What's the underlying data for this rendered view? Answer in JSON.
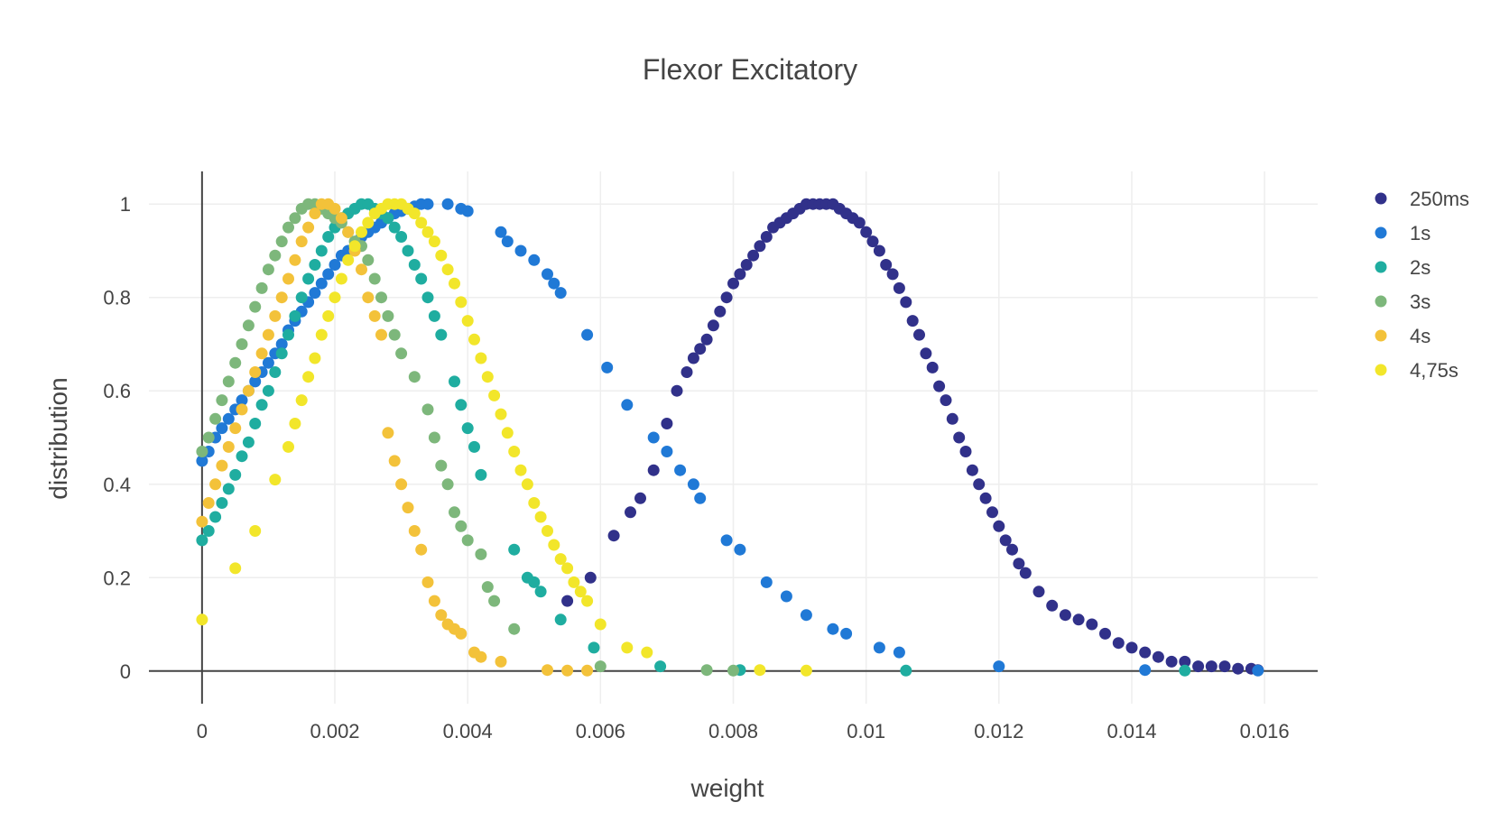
{
  "chart_data": {
    "type": "scatter",
    "title": "Flexor Excitatory",
    "xlabel": "weight",
    "ylabel": "distribution",
    "xlim": [
      -0.0008,
      0.0168
    ],
    "ylim": [
      -0.07,
      1.07
    ],
    "x_ticks": [
      0,
      0.002,
      0.004,
      0.006,
      0.008,
      0.01,
      0.012,
      0.014,
      0.016
    ],
    "x_tick_labels": [
      "0",
      "0.002",
      "0.004",
      "0.006",
      "0.008",
      "0.01",
      "0.012",
      "0.014",
      "0.016"
    ],
    "y_ticks": [
      0,
      0.2,
      0.4,
      0.6,
      0.8,
      1
    ],
    "y_tick_labels": [
      "0",
      "0.2",
      "0.4",
      "0.6",
      "0.8",
      "1"
    ],
    "grid": true,
    "legend_position": "top-right",
    "series": [
      {
        "name": "250ms",
        "color": "#31318a",
        "x": [
          0.0055,
          0.00585,
          0.0062,
          0.00645,
          0.0066,
          0.0068,
          0.007,
          0.00715,
          0.0073,
          0.0074,
          0.0075,
          0.0076,
          0.0077,
          0.0078,
          0.0079,
          0.008,
          0.0081,
          0.0082,
          0.0083,
          0.0084,
          0.0085,
          0.0086,
          0.0087,
          0.0088,
          0.0089,
          0.009,
          0.0091,
          0.0092,
          0.0093,
          0.0094,
          0.0095,
          0.0096,
          0.0097,
          0.0098,
          0.0099,
          0.01,
          0.0101,
          0.0102,
          0.0103,
          0.0104,
          0.0105,
          0.0106,
          0.0107,
          0.0108,
          0.0109,
          0.011,
          0.0111,
          0.0112,
          0.0113,
          0.0114,
          0.0115,
          0.0116,
          0.0117,
          0.0118,
          0.0119,
          0.012,
          0.0121,
          0.0122,
          0.0123,
          0.0124,
          0.0126,
          0.0128,
          0.013,
          0.0132,
          0.0134,
          0.0136,
          0.0138,
          0.014,
          0.0142,
          0.0144,
          0.0146,
          0.0148,
          0.015,
          0.0152,
          0.0154,
          0.0156,
          0.0158,
          0.0159
        ],
        "y": [
          0.15,
          0.2,
          0.29,
          0.34,
          0.37,
          0.43,
          0.53,
          0.6,
          0.64,
          0.67,
          0.69,
          0.71,
          0.74,
          0.77,
          0.8,
          0.83,
          0.85,
          0.87,
          0.89,
          0.91,
          0.93,
          0.95,
          0.96,
          0.97,
          0.98,
          0.99,
          1.0,
          1.0,
          1.0,
          1.0,
          1.0,
          0.99,
          0.98,
          0.97,
          0.96,
          0.94,
          0.92,
          0.9,
          0.87,
          0.85,
          0.82,
          0.79,
          0.75,
          0.72,
          0.68,
          0.65,
          0.61,
          0.58,
          0.54,
          0.5,
          0.47,
          0.43,
          0.4,
          0.37,
          0.34,
          0.31,
          0.28,
          0.26,
          0.23,
          0.21,
          0.17,
          0.14,
          0.12,
          0.11,
          0.1,
          0.08,
          0.06,
          0.05,
          0.04,
          0.03,
          0.02,
          0.02,
          0.01,
          0.01,
          0.01,
          0.005,
          0.005,
          0.002
        ]
      },
      {
        "name": "1s",
        "color": "#2079d6",
        "x": [
          0.0,
          0.0001,
          0.0002,
          0.0003,
          0.0004,
          0.0005,
          0.0006,
          0.0007,
          0.0008,
          0.0009,
          0.001,
          0.0011,
          0.0012,
          0.0013,
          0.0014,
          0.0015,
          0.0016,
          0.0017,
          0.0018,
          0.0019,
          0.002,
          0.0021,
          0.0022,
          0.0023,
          0.0024,
          0.0025,
          0.0026,
          0.0027,
          0.0028,
          0.0029,
          0.003,
          0.0031,
          0.0032,
          0.0033,
          0.0034,
          0.0037,
          0.0039,
          0.004,
          0.0045,
          0.0046,
          0.0048,
          0.005,
          0.0052,
          0.0053,
          0.0054,
          0.0058,
          0.0061,
          0.0064,
          0.0068,
          0.007,
          0.0072,
          0.0074,
          0.0075,
          0.0079,
          0.0081,
          0.0085,
          0.0088,
          0.0091,
          0.0095,
          0.0097,
          0.0102,
          0.0105,
          0.012,
          0.0142,
          0.0159
        ],
        "y": [
          0.45,
          0.47,
          0.5,
          0.52,
          0.54,
          0.56,
          0.58,
          0.6,
          0.62,
          0.64,
          0.66,
          0.68,
          0.7,
          0.73,
          0.75,
          0.77,
          0.79,
          0.81,
          0.83,
          0.85,
          0.87,
          0.89,
          0.9,
          0.91,
          0.93,
          0.94,
          0.95,
          0.96,
          0.97,
          0.98,
          0.985,
          0.99,
          0.995,
          1.0,
          1.0,
          1.0,
          0.99,
          0.985,
          0.94,
          0.92,
          0.9,
          0.88,
          0.85,
          0.83,
          0.81,
          0.72,
          0.65,
          0.57,
          0.5,
          0.47,
          0.43,
          0.4,
          0.37,
          0.28,
          0.26,
          0.19,
          0.16,
          0.12,
          0.09,
          0.08,
          0.05,
          0.04,
          0.01,
          0.002,
          0.001
        ]
      },
      {
        "name": "2s",
        "color": "#1fada0",
        "x": [
          0.0,
          0.0001,
          0.0002,
          0.0003,
          0.0004,
          0.0005,
          0.0006,
          0.0007,
          0.0008,
          0.0009,
          0.001,
          0.0011,
          0.0012,
          0.0013,
          0.0014,
          0.0015,
          0.0016,
          0.0017,
          0.0018,
          0.0019,
          0.002,
          0.0021,
          0.0022,
          0.0023,
          0.0024,
          0.0025,
          0.0026,
          0.0027,
          0.0028,
          0.0029,
          0.003,
          0.0031,
          0.0032,
          0.0033,
          0.0034,
          0.0035,
          0.0036,
          0.0038,
          0.0039,
          0.004,
          0.0041,
          0.0042,
          0.0047,
          0.0049,
          0.005,
          0.0051,
          0.0054,
          0.0059,
          0.0069,
          0.0081,
          0.0106,
          0.0148
        ],
        "y": [
          0.28,
          0.3,
          0.33,
          0.36,
          0.39,
          0.42,
          0.46,
          0.49,
          0.53,
          0.57,
          0.6,
          0.64,
          0.68,
          0.72,
          0.76,
          0.8,
          0.84,
          0.87,
          0.9,
          0.93,
          0.95,
          0.97,
          0.98,
          0.99,
          1.0,
          1.0,
          0.99,
          0.98,
          0.97,
          0.95,
          0.93,
          0.9,
          0.87,
          0.84,
          0.8,
          0.76,
          0.72,
          0.62,
          0.57,
          0.52,
          0.48,
          0.42,
          0.26,
          0.2,
          0.19,
          0.17,
          0.11,
          0.05,
          0.01,
          0.002,
          0.001,
          0.001
        ]
      },
      {
        "name": "3s",
        "color": "#7db77b",
        "x": [
          0.0,
          0.0001,
          0.0002,
          0.0003,
          0.0004,
          0.0005,
          0.0006,
          0.0007,
          0.0008,
          0.0009,
          0.001,
          0.0011,
          0.0012,
          0.0013,
          0.0014,
          0.0015,
          0.0016,
          0.0017,
          0.0018,
          0.0019,
          0.002,
          0.0021,
          0.0022,
          0.0023,
          0.0024,
          0.0025,
          0.0026,
          0.0027,
          0.0028,
          0.0029,
          0.003,
          0.0032,
          0.0034,
          0.0035,
          0.0036,
          0.0037,
          0.0038,
          0.0039,
          0.004,
          0.0042,
          0.0043,
          0.0044,
          0.0047,
          0.006,
          0.0076,
          0.008
        ],
        "y": [
          0.47,
          0.5,
          0.54,
          0.58,
          0.62,
          0.66,
          0.7,
          0.74,
          0.78,
          0.82,
          0.86,
          0.89,
          0.92,
          0.95,
          0.97,
          0.99,
          1.0,
          1.0,
          0.99,
          0.98,
          0.97,
          0.96,
          0.94,
          0.92,
          0.91,
          0.88,
          0.84,
          0.8,
          0.76,
          0.72,
          0.68,
          0.63,
          0.56,
          0.5,
          0.44,
          0.4,
          0.34,
          0.31,
          0.28,
          0.25,
          0.18,
          0.15,
          0.09,
          0.01,
          0.002,
          0.001
        ]
      },
      {
        "name": "4s",
        "color": "#f3c23a",
        "x": [
          0.0,
          0.0001,
          0.0002,
          0.0003,
          0.0004,
          0.0005,
          0.0006,
          0.0007,
          0.0008,
          0.0009,
          0.001,
          0.0011,
          0.0012,
          0.0013,
          0.0014,
          0.0015,
          0.0016,
          0.0017,
          0.0018,
          0.0019,
          0.002,
          0.0021,
          0.0022,
          0.0023,
          0.0024,
          0.0025,
          0.0026,
          0.0027,
          0.0028,
          0.0029,
          0.003,
          0.0031,
          0.0032,
          0.0033,
          0.0034,
          0.0035,
          0.0036,
          0.0037,
          0.0038,
          0.0039,
          0.0041,
          0.0042,
          0.0045,
          0.0052,
          0.0055,
          0.0058
        ],
        "y": [
          0.32,
          0.36,
          0.4,
          0.44,
          0.48,
          0.52,
          0.56,
          0.6,
          0.64,
          0.68,
          0.72,
          0.76,
          0.8,
          0.84,
          0.88,
          0.92,
          0.95,
          0.98,
          1.0,
          1.0,
          0.99,
          0.97,
          0.94,
          0.9,
          0.86,
          0.8,
          0.76,
          0.72,
          0.51,
          0.45,
          0.4,
          0.35,
          0.3,
          0.26,
          0.19,
          0.15,
          0.12,
          0.1,
          0.09,
          0.08,
          0.04,
          0.03,
          0.02,
          0.002,
          0.001,
          0.001
        ]
      },
      {
        "name": "4,75s",
        "color": "#f2e62a",
        "x": [
          0.0,
          0.0005,
          0.0008,
          0.0011,
          0.0013,
          0.0014,
          0.0015,
          0.0016,
          0.0017,
          0.0018,
          0.0019,
          0.002,
          0.0021,
          0.0022,
          0.0023,
          0.0024,
          0.0025,
          0.0026,
          0.0027,
          0.0028,
          0.0029,
          0.003,
          0.0031,
          0.0032,
          0.0033,
          0.0034,
          0.0035,
          0.0036,
          0.0037,
          0.0038,
          0.0039,
          0.004,
          0.0041,
          0.0042,
          0.0043,
          0.0044,
          0.0045,
          0.0046,
          0.0047,
          0.0048,
          0.0049,
          0.005,
          0.0051,
          0.0052,
          0.0053,
          0.0054,
          0.0055,
          0.0056,
          0.0057,
          0.0058,
          0.006,
          0.0064,
          0.0067,
          0.0084,
          0.0091
        ],
        "y": [
          0.11,
          0.22,
          0.3,
          0.41,
          0.48,
          0.53,
          0.58,
          0.63,
          0.67,
          0.72,
          0.76,
          0.8,
          0.84,
          0.88,
          0.91,
          0.94,
          0.96,
          0.98,
          0.99,
          1.0,
          1.0,
          1.0,
          0.99,
          0.98,
          0.96,
          0.94,
          0.92,
          0.89,
          0.86,
          0.83,
          0.79,
          0.75,
          0.71,
          0.67,
          0.63,
          0.59,
          0.55,
          0.51,
          0.47,
          0.43,
          0.4,
          0.36,
          0.33,
          0.3,
          0.27,
          0.24,
          0.22,
          0.19,
          0.17,
          0.15,
          0.1,
          0.05,
          0.04,
          0.002,
          0.001
        ]
      }
    ]
  }
}
